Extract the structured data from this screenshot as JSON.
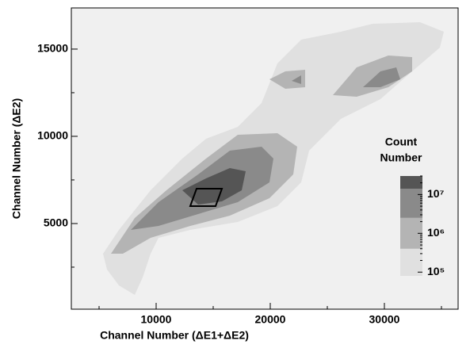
{
  "chart_data": {
    "type": "contour",
    "x_label": "Channel Number (ΔE1+ΔE2)",
    "y_label": "Channel Number (ΔE2)",
    "xlim": [
      2570,
      36460
    ],
    "xticks": [
      10000,
      20000,
      30000
    ],
    "xminorticks": [
      5000,
      15000,
      25000,
      35000
    ],
    "ylim": [
      90,
      17360
    ],
    "yticks": [
      5000,
      10000,
      15000
    ],
    "yminorticks": [
      2500,
      7500,
      12500
    ],
    "colorbar": {
      "title": [
        "Count",
        "Number"
      ],
      "scale": "log",
      "clim": [
        80000,
        30000000
      ],
      "ticks": [
        {
          "value": 100000,
          "label": "10⁵"
        },
        {
          "value": 1000000,
          "label": "10⁶"
        },
        {
          "value": 10000000,
          "label": "10⁷"
        }
      ],
      "levels": [
        80000,
        400000,
        2500000,
        14000000,
        30000000
      ],
      "colors": [
        "#e0e0e0",
        "#b4b4b4",
        "#8a8a8a",
        "#555555"
      ]
    },
    "background": "#f0f0f0"
  }
}
